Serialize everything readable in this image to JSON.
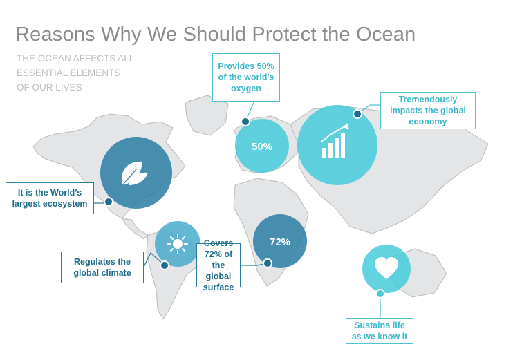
{
  "slide": {
    "title": "Reasons Why We Should Protect the Ocean",
    "subtitle": "THE OCEAN AFFECTS ALL ESSENTIAL ELEMENTS OF OUR LIVES"
  },
  "colors": {
    "map_land": "#e4e5e6",
    "map_outline": "#b8babc",
    "dark_teal": "#2a7ea3",
    "mid_teal": "#4aaccb",
    "light_cyan": "#46cbd9",
    "callout_border": "#4fc3d5",
    "callout_text_light": "#3ab9cc",
    "callout_text_dark": "#1f6d8d",
    "title_gray": "#8a8d90",
    "subtitle_gray": "#bcbec0"
  },
  "reasons": [
    {
      "id": "ecosystem",
      "text": "It is the World’s largest ecosystem",
      "icon": "leaf-icon",
      "style": "dark"
    },
    {
      "id": "oxygen",
      "text": "Provides 50% of the world's oxygen",
      "badge": "50%",
      "style": "light"
    },
    {
      "id": "economy",
      "text": "Tremendously impacts the global economy",
      "icon": "bar-chart-growth-icon",
      "style": "light"
    },
    {
      "id": "climate",
      "text": "Regulates the global climate",
      "icon": "sun-icon",
      "style": "dark"
    },
    {
      "id": "surface",
      "text": "Covers 72% of the global surface",
      "badge": "72%",
      "style": "dark"
    },
    {
      "id": "life",
      "text": "Sustains life as we know it",
      "icon": "heart-icon",
      "style": "light"
    }
  ]
}
